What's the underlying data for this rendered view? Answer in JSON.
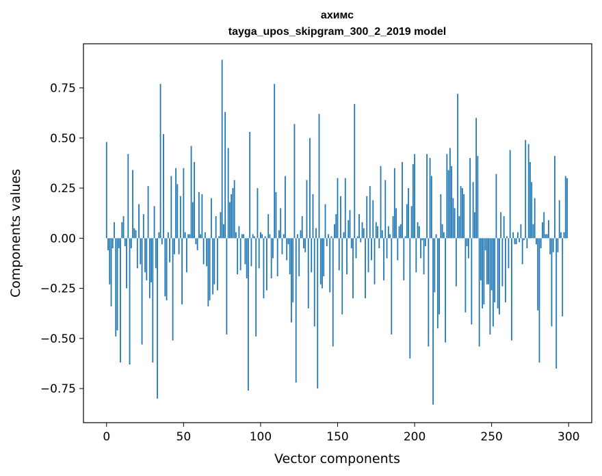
{
  "chart_data": {
    "type": "bar",
    "title": "ахимс",
    "subtitle": "tayga_upos_skipgram_300_2_2019 model",
    "xlabel": "Vector components",
    "ylabel": "Components values",
    "xlim": [
      -15,
      315
    ],
    "ylim": [
      -0.92,
      0.97
    ],
    "xticks": [
      0,
      50,
      100,
      150,
      200,
      250,
      300
    ],
    "xtick_labels": [
      "0",
      "50",
      "100",
      "150",
      "200",
      "250",
      "300"
    ],
    "yticks": [
      -0.75,
      -0.5,
      -0.25,
      0.0,
      0.25,
      0.5,
      0.75
    ],
    "ytick_labels": [
      "−0.75",
      "−0.50",
      "−0.25",
      "0.00",
      "0.25",
      "0.50",
      "0.75"
    ],
    "grid": false,
    "legend": "none",
    "bar_color": "#1f77b4",
    "x": [
      0,
      1,
      2,
      3,
      4,
      5,
      6,
      7,
      8,
      9,
      10,
      11,
      12,
      13,
      14,
      15,
      16,
      17,
      18,
      19,
      20,
      21,
      22,
      23,
      24,
      25,
      26,
      27,
      28,
      29,
      30,
      31,
      32,
      33,
      34,
      35,
      36,
      37,
      38,
      39,
      40,
      41,
      42,
      43,
      44,
      45,
      46,
      47,
      48,
      49,
      50,
      51,
      52,
      53,
      54,
      55,
      56,
      57,
      58,
      59,
      60,
      61,
      62,
      63,
      64,
      65,
      66,
      67,
      68,
      69,
      70,
      71,
      72,
      73,
      74,
      75,
      76,
      77,
      78,
      79,
      80,
      81,
      82,
      83,
      84,
      85,
      86,
      87,
      88,
      89,
      90,
      91,
      92,
      93,
      94,
      95,
      96,
      97,
      98,
      99,
      100,
      101,
      102,
      103,
      104,
      105,
      106,
      107,
      108,
      109,
      110,
      111,
      112,
      113,
      114,
      115,
      116,
      117,
      118,
      119,
      120,
      121,
      122,
      123,
      124,
      125,
      126,
      127,
      128,
      129,
      130,
      131,
      132,
      133,
      134,
      135,
      136,
      137,
      138,
      139,
      140,
      141,
      142,
      143,
      144,
      145,
      146,
      147,
      148,
      149,
      150,
      151,
      152,
      153,
      154,
      155,
      156,
      157,
      158,
      159,
      160,
      161,
      162,
      163,
      164,
      165,
      166,
      167,
      168,
      169,
      170,
      171,
      172,
      173,
      174,
      175,
      176,
      177,
      178,
      179,
      180,
      181,
      182,
      183,
      184,
      185,
      186,
      187,
      188,
      189,
      190,
      191,
      192,
      193,
      194,
      195,
      196,
      197,
      198,
      199,
      200,
      201,
      202,
      203,
      204,
      205,
      206,
      207,
      208,
      209,
      210,
      211,
      212,
      213,
      214,
      215,
      216,
      217,
      218,
      219,
      220,
      221,
      222,
      223,
      224,
      225,
      226,
      227,
      228,
      229,
      230,
      231,
      232,
      233,
      234,
      235,
      236,
      237,
      238,
      239,
      240,
      241,
      242,
      243,
      244,
      245,
      246,
      247,
      248,
      249,
      250,
      251,
      252,
      253,
      254,
      255,
      256,
      257,
      258,
      259,
      260,
      261,
      262,
      263,
      264,
      265,
      266,
      267,
      268,
      269,
      270,
      271,
      272,
      273,
      274,
      275,
      276,
      277,
      278,
      279,
      280,
      281,
      282,
      283,
      284,
      285,
      286,
      287,
      288,
      289,
      290,
      291,
      292,
      293,
      294,
      295,
      296,
      297,
      298,
      299
    ],
    "values": [
      0.48,
      -0.06,
      -0.23,
      -0.34,
      -0.05,
      0.08,
      -0.49,
      -0.46,
      -0.05,
      -0.62,
      0.08,
      0.11,
      -0.04,
      -0.25,
      0.42,
      -0.63,
      -0.05,
      0.34,
      0.05,
      0.04,
      -0.15,
      0.17,
      -0.13,
      -0.53,
      0.12,
      -0.17,
      -0.21,
      0.26,
      -0.3,
      -0.22,
      -0.62,
      0.16,
      -0.15,
      -0.8,
      0.03,
      0.77,
      -0.03,
      0.52,
      -0.29,
      -0.31,
      0.03,
      -0.12,
      0.31,
      -0.51,
      -0.08,
      0.35,
      0.27,
      -0.08,
      0.21,
      -0.33,
      0.35,
      0.03,
      -0.17,
      0.02,
      0.02,
      0.46,
      0.18,
      0.38,
      -0.03,
      -0.06,
      0.23,
      0.02,
      0.22,
      -0.13,
      0.03,
      -0.14,
      -0.34,
      -0.31,
      0.2,
      -0.28,
      -0.23,
      0.11,
      -0.26,
      0.01,
      0.13,
      0.89,
      0.07,
      0.63,
      -0.48,
      0.45,
      0.18,
      0.22,
      0.25,
      0.29,
      0.03,
      -0.18,
      0.06,
      -0.16,
      0.02,
      0.02,
      -0.13,
      -0.2,
      -0.76,
      0.53,
      -0.14,
      0.02,
      0.01,
      -0.49,
      0.25,
      -0.15,
      0.03,
      0.02,
      -0.3,
      0.01,
      -0.26,
      0.12,
      0.02,
      -0.2,
      -0.1,
      0.77,
      0.23,
      -0.19,
      0.04,
      0.15,
      -0.08,
      0.02,
      0.31,
      -0.11,
      -0.03,
      -0.18,
      -0.42,
      -0.32,
      0.57,
      -0.72,
      0.02,
      -0.19,
      0.04,
      0.11,
      -0.05,
      -0.07,
      0.29,
      -0.35,
      0.5,
      -0.17,
      0.22,
      -0.44,
      0.05,
      -0.75,
      0.62,
      -0.23,
      -0.25,
      -0.19,
      0.17,
      -0.04,
      0.02,
      -0.27,
      0.01,
      -0.54,
      0.07,
      0.12,
      0.3,
      -0.16,
      0.21,
      -0.38,
      0.03,
      0.3,
      -0.18,
      0.09,
      0.14,
      -0.05,
      -0.3,
      0.67,
      -0.1,
      0.01,
      0.12,
      -0.02,
      0.08,
      0.05,
      -0.3,
      0.21,
      -0.17,
      0.26,
      -0.11,
      0.19,
      -0.23,
      0.08,
      0.06,
      -0.05,
      0.36,
      0.04,
      -0.21,
      0.29,
      -0.1,
      0.06,
      0.02,
      -0.48,
      0.11,
      0.35,
      0.15,
      -0.11,
      0.06,
      0.07,
      0.38,
      -0.21,
      0.01,
      0.17,
      0.25,
      -0.6,
      0.16,
      0.37,
      0.42,
      -0.17,
      0.08,
      0.06,
      -0.1,
      -0.01,
      -0.18,
      -0.04,
      0.42,
      -0.54,
      0.4,
      0.31,
      -0.83,
      -0.27,
      0.02,
      -0.45,
      -0.38,
      0.22,
      0.07,
      0.03,
      -0.52,
      0.42,
      0.34,
      0.45,
      0.36,
      0.2,
      0.15,
      -0.24,
      0.72,
      0.11,
      0.26,
      0.25,
      0.22,
      -0.37,
      -0.04,
      -0.1,
      0.4,
      -0.43,
      0.28,
      0.13,
      0.6,
      0.41,
      -0.54,
      -0.21,
      -0.35,
      -0.33,
      -0.06,
      -0.23,
      -0.23,
      -0.48,
      -0.26,
      -0.44,
      -0.32,
      0.32,
      -0.35,
      -0.38,
      0.13,
      -0.24,
      0.11,
      -0.32,
      0.01,
      -0.15,
      0.44,
      -0.51,
      0.03,
      -0.03,
      -0.03,
      0.03,
      -0.02,
      0.07,
      -0.13,
      -0.01,
      0.49,
      -0.05,
      0.47,
      0.38,
      0.28,
      0.07,
      0.2,
      -0.03,
      -0.36,
      -0.62,
      -0.05,
      0.08,
      0.13,
      0.02,
      0.02,
      0.09,
      -0.08,
      -0.44,
      -0.07,
      0.41,
      -0.65,
      -0.07,
      0.19,
      0.03,
      -0.39,
      0.03,
      0.31,
      0.3
    ]
  }
}
